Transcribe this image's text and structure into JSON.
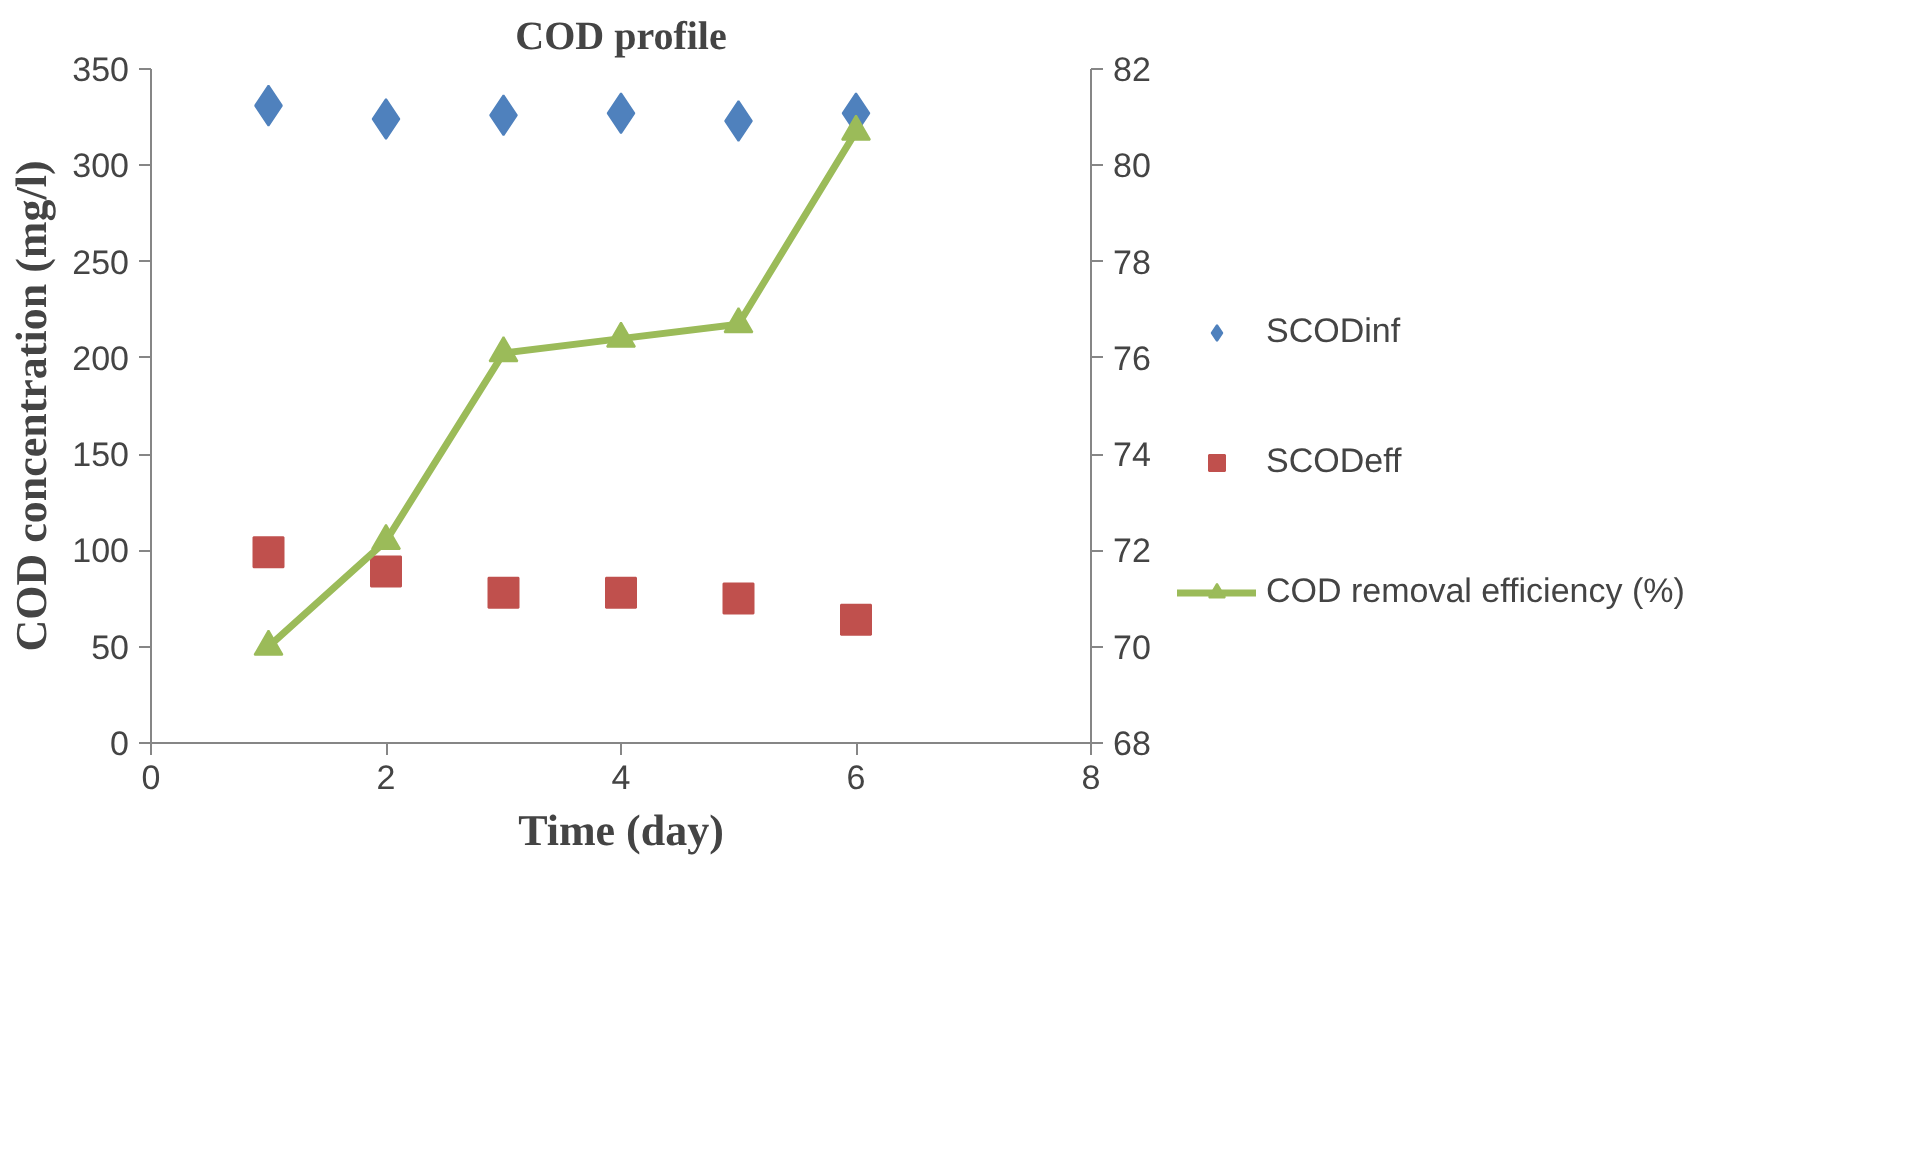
{
  "chart_data": {
    "type": "scatter",
    "title": "COD profile",
    "xlabel": "Time (day)",
    "ylabel": "COD concentration (mg/l)",
    "x": [
      1,
      2,
      3,
      4,
      5,
      6
    ],
    "xlim": [
      0,
      8
    ],
    "xticks": [
      0,
      2,
      4,
      6,
      8
    ],
    "ylim": [
      0,
      350
    ],
    "yticks": [
      0,
      50,
      100,
      150,
      200,
      250,
      300,
      350
    ],
    "y2lim": [
      68,
      82
    ],
    "y2ticks": [
      68,
      70,
      72,
      74,
      76,
      78,
      80,
      82
    ],
    "grid": false,
    "legend": "right",
    "series": [
      {
        "name": "SCODinf",
        "type": "scatter",
        "marker": "diamond",
        "color": "#4f81bd",
        "values": [
          331,
          324,
          326,
          327,
          323,
          327
        ]
      },
      {
        "name": "SCODeff",
        "type": "scatter",
        "marker": "square",
        "color": "#c0504d",
        "values": [
          99,
          89,
          78,
          78,
          75,
          64
        ]
      },
      {
        "name": "COD removal efficiency (%)",
        "type": "line",
        "marker": "triangle",
        "line_style": "solid",
        "axis": "y2",
        "color": "#9bbb59",
        "values": [
          70.0,
          72.2,
          76.1,
          76.4,
          76.7,
          80.7
        ]
      }
    ]
  }
}
